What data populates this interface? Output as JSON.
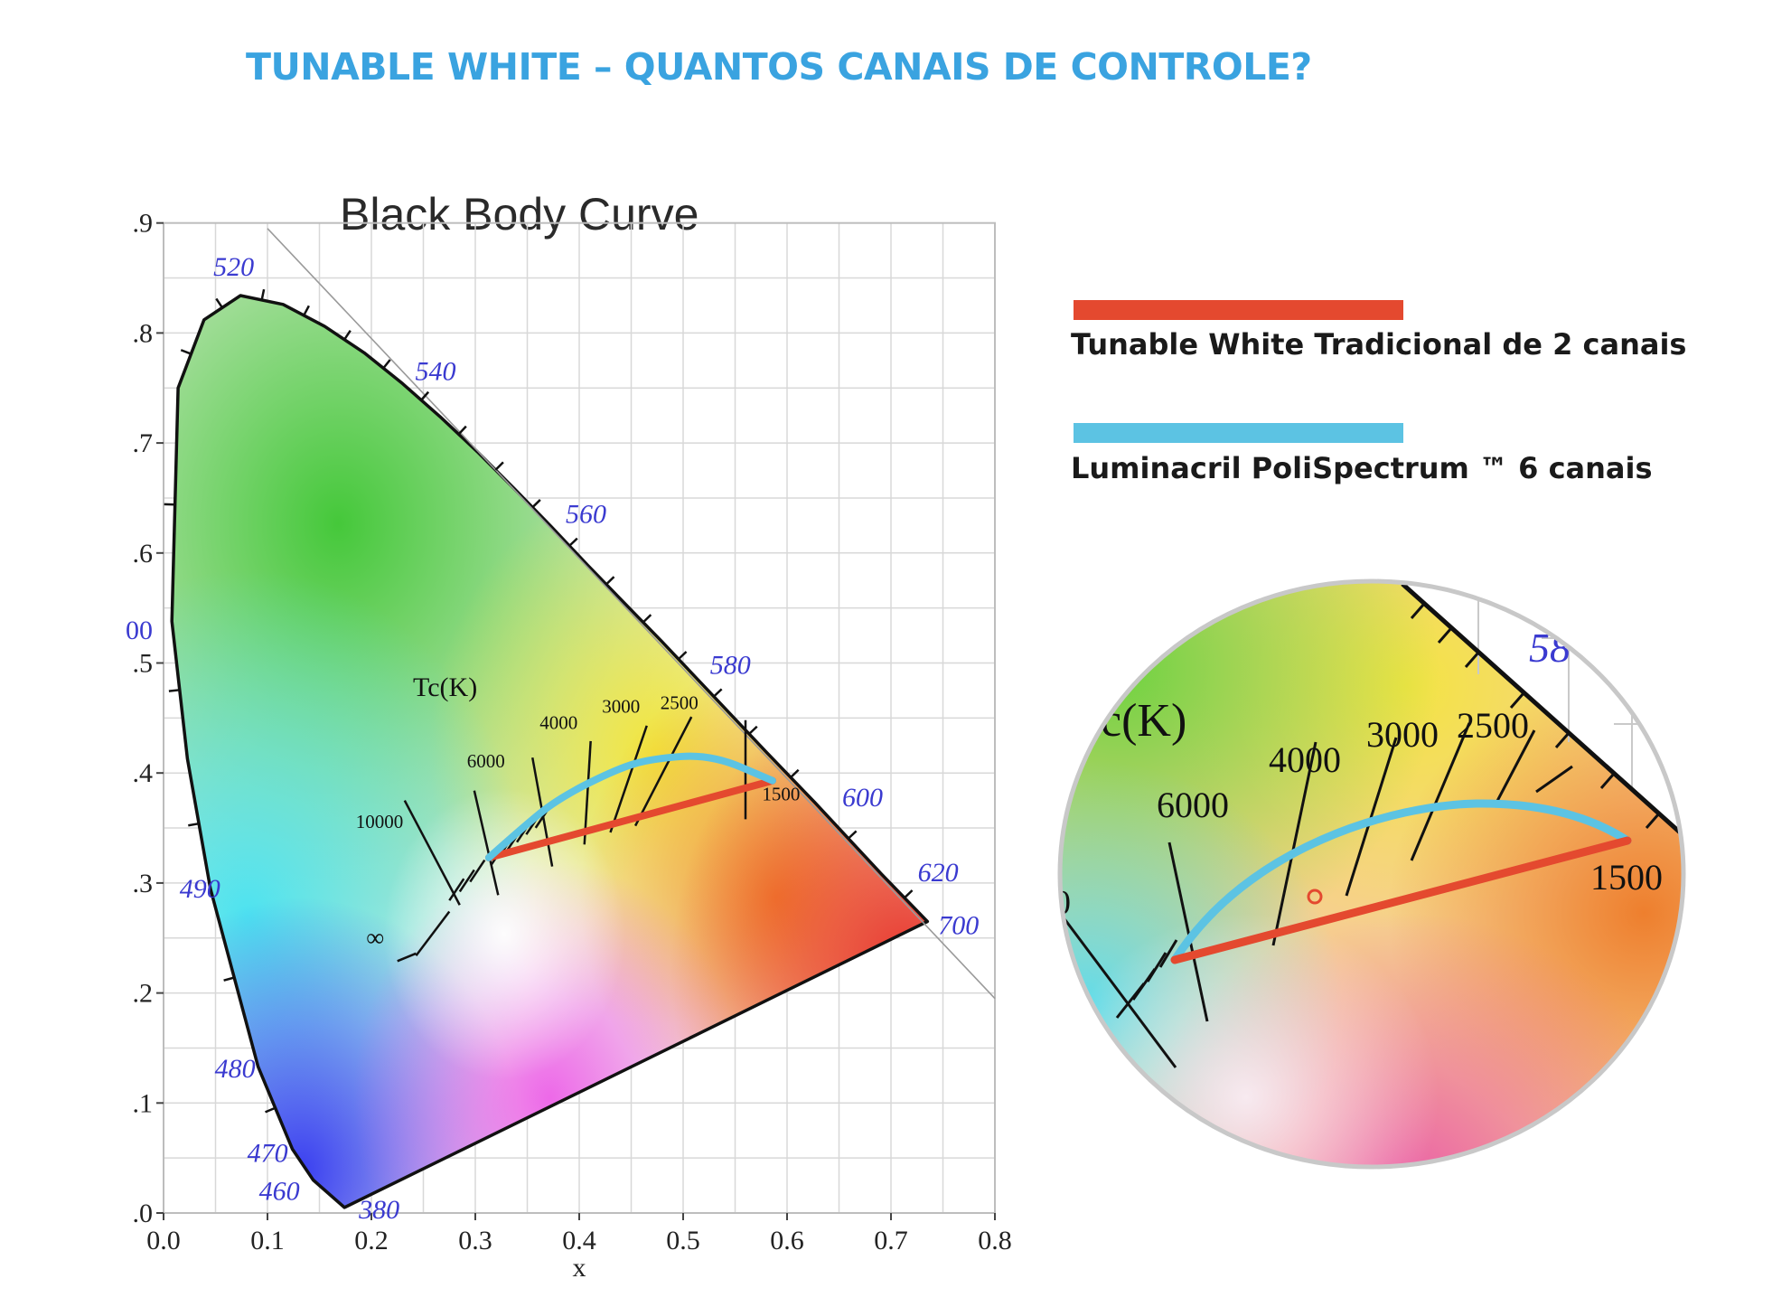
{
  "slide_title": "TUNABLE WHITE – QUANTOS CANAIS DE CONTROLE?",
  "colors": {
    "title": "#3aa3e0",
    "tunable_2ch": "#e4492f",
    "polispectrum_6ch": "#5cc3e3",
    "wavelength_labels": "#3a3ad0",
    "grid": "#d8d8d8"
  },
  "legend": [
    {
      "label": "Tunable White Tradicional de 2 canais",
      "color": "#e4492f"
    },
    {
      "label": "Luminacril PoliSpectrum ™ 6 canais",
      "color": "#5cc3e3"
    }
  ],
  "chart_data": {
    "type": "diagram",
    "title": "Black Body Curve",
    "xlabel": "x",
    "xlim": [
      0.0,
      0.8
    ],
    "ylim": [
      0.0,
      0.9
    ],
    "x_ticks": [
      "0.0",
      "0.1",
      "0.2",
      "0.3",
      "0.4",
      "0.5",
      "0.6",
      "0.7",
      "0.8"
    ],
    "y_ticks": [
      ".0",
      ".1",
      ".2",
      ".3",
      ".4",
      ".5",
      ".6",
      ".7",
      ".8",
      ".9"
    ],
    "y_extra_label": "00",
    "wavelength_labels": [
      {
        "text": "520",
        "x": 0.074,
        "y": 0.834
      },
      {
        "text": "540",
        "x": 0.23,
        "y": 0.754
      },
      {
        "text": "560",
        "x": 0.373,
        "y": 0.624
      },
      {
        "text": "580",
        "x": 0.512,
        "y": 0.487
      },
      {
        "text": "600",
        "x": 0.627,
        "y": 0.373
      },
      {
        "text": "620",
        "x": 0.691,
        "y": 0.308
      },
      {
        "text": "700",
        "x": 0.735,
        "y": 0.265
      },
      {
        "text": "490",
        "x": 0.045,
        "y": 0.295
      },
      {
        "text": "480",
        "x": 0.091,
        "y": 0.133
      },
      {
        "text": "470",
        "x": 0.124,
        "y": 0.058
      },
      {
        "text": "460",
        "x": 0.144,
        "y": 0.03
      },
      {
        "text": "380",
        "x": 0.174,
        "y": 0.005
      }
    ],
    "planckian_label": "Tc(K)",
    "cct_labels": [
      "10000",
      "6000",
      "4000",
      "3000",
      "2500",
      "1500",
      "∞"
    ],
    "series": [
      {
        "name": "Tunable White Tradicional de 2 canais",
        "color": "#e4492f",
        "points": [
          [
            0.313,
            0.323
          ],
          [
            0.586,
            0.393
          ]
        ]
      },
      {
        "name": "Luminacril PoliSpectrum ™ 6 canais",
        "color": "#5cc3e3",
        "points": [
          [
            0.313,
            0.323
          ],
          [
            0.345,
            0.35
          ],
          [
            0.38,
            0.377
          ],
          [
            0.437,
            0.404
          ],
          [
            0.47,
            0.413
          ],
          [
            0.527,
            0.417
          ],
          [
            0.586,
            0.393
          ]
        ]
      }
    ]
  },
  "inset": {
    "cct_prefix": "c(K)",
    "cct_labels": [
      "6000",
      "4000",
      "3000",
      "2500",
      "1500"
    ],
    "wavelength_partial": "58",
    "edge_label": "0"
  }
}
